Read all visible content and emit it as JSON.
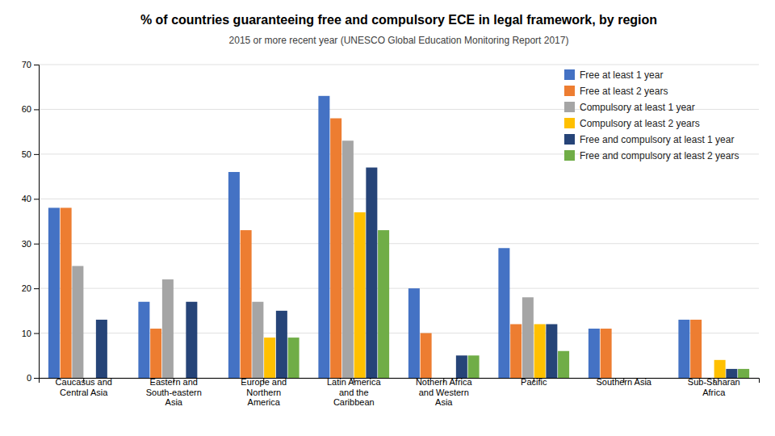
{
  "chart_data": {
    "type": "bar",
    "title": "% of countries guaranteeing free and compulsory ECE in legal framework, by region",
    "subtitle": "2015 or more recent year (UNESCO Global Education Monitoring Report 2017)",
    "categories": [
      "Caucasus and\nCentral Asia",
      "Eastern and\nSouth-eastern\nAsia",
      "Europe and\nNorthern\nAmerica",
      "Latin America\nand the\nCaribbean",
      "Nothern Africa\nand Western\nAsia",
      "Pacific",
      "Southern Asia",
      "Sub-Saharan\nAfrica"
    ],
    "series": [
      {
        "name": "Free at least 1 year",
        "color": "#4472C4",
        "values": [
          38,
          17,
          46,
          63,
          20,
          29,
          11,
          13
        ]
      },
      {
        "name": "Free at least 2 years",
        "color": "#ED7D31",
        "values": [
          38,
          11,
          33,
          58,
          10,
          12,
          11,
          13
        ]
      },
      {
        "name": "Compulsory at least 1 year",
        "color": "#A5A5A5",
        "values": [
          25,
          22,
          17,
          53,
          0,
          18,
          0,
          0
        ]
      },
      {
        "name": "Compulsory at least 2 years",
        "color": "#FFC000",
        "values": [
          0,
          0,
          9,
          37,
          0,
          12,
          0,
          4
        ]
      },
      {
        "name": "Free and compulsory at least 1 year",
        "color": "#264478",
        "values": [
          13,
          17,
          15,
          47,
          5,
          12,
          0,
          2
        ]
      },
      {
        "name": "Free and compulsory at least 2 years",
        "color": "#70AD47",
        "values": [
          0,
          0,
          9,
          33,
          5,
          6,
          0,
          2
        ]
      }
    ],
    "ylim": [
      0,
      70
    ],
    "yticks": [
      0,
      10,
      20,
      30,
      40,
      50,
      60,
      70
    ],
    "grid": true,
    "legend": "upper right"
  }
}
